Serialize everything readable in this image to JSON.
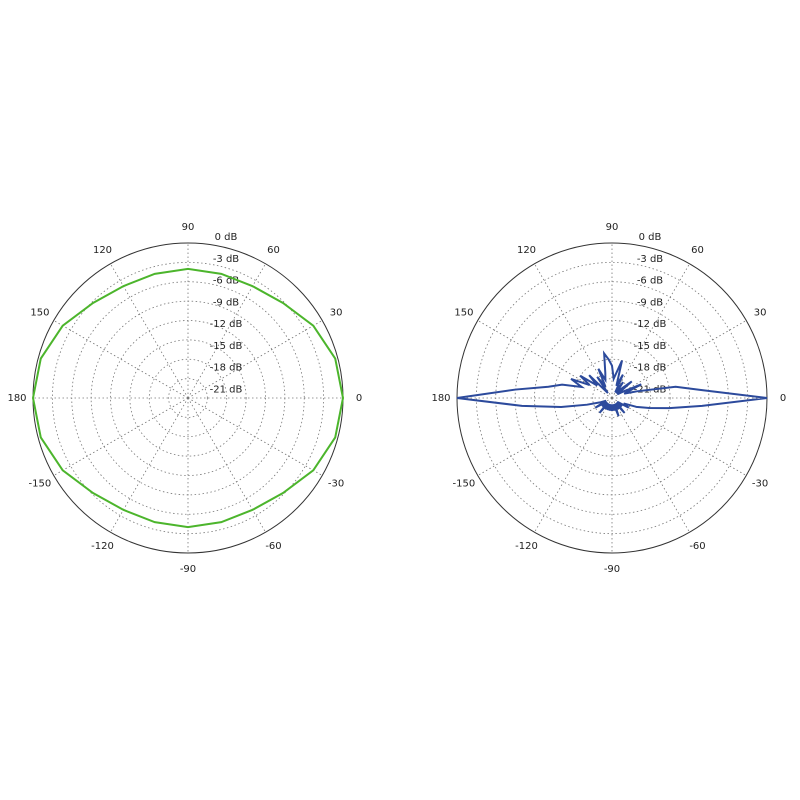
{
  "chart_data": [
    {
      "type": "polar",
      "color": "#4cb52c",
      "rlim": [
        -24,
        0
      ],
      "rticks": [
        {
          "value": 0,
          "label": "0 dB"
        },
        {
          "value": -3,
          "label": "-3 dB"
        },
        {
          "value": -6,
          "label": "-6 dB"
        },
        {
          "value": -9,
          "label": "-9 dB"
        },
        {
          "value": -12,
          "label": "-12 dB"
        },
        {
          "value": -15,
          "label": "-15 dB"
        },
        {
          "value": -18,
          "label": "-18 dB"
        },
        {
          "value": -21,
          "label": "-21 dB"
        }
      ],
      "thetaticks": [
        0,
        30,
        60,
        90,
        120,
        150,
        180,
        -150,
        -120,
        -90,
        -60,
        -30
      ],
      "theta": [
        0,
        15,
        30,
        45,
        60,
        75,
        90,
        105,
        120,
        135,
        150,
        165,
        180,
        195,
        210,
        225,
        240,
        255,
        270,
        285,
        300,
        315,
        330,
        345
      ],
      "values": [
        0,
        -0.4,
        -1.6,
        -3.2,
        -4,
        -4.1,
        -4,
        -4.1,
        -4,
        -3.2,
        -1.6,
        -0.4,
        0,
        -0.4,
        -1.6,
        -3.2,
        -4,
        -4.1,
        -4,
        -4.1,
        -4,
        -3.2,
        -1.6,
        -0.4
      ]
    },
    {
      "type": "polar",
      "color": "#2c4a9c",
      "rlim": [
        -24,
        0
      ],
      "rticks": [
        {
          "value": 0,
          "label": "0 dB"
        },
        {
          "value": -3,
          "label": "-3 dB"
        },
        {
          "value": -6,
          "label": "-6 dB"
        },
        {
          "value": -9,
          "label": "-9 dB"
        },
        {
          "value": -12,
          "label": "-12 dB"
        },
        {
          "value": -15,
          "label": "-15 dB"
        },
        {
          "value": -18,
          "label": "-18 dB"
        },
        {
          "value": -21,
          "label": "-21 dB"
        }
      ],
      "thetaticks": [
        0,
        30,
        60,
        90,
        120,
        150,
        180,
        -150,
        -120,
        -90,
        -60,
        -30
      ],
      "theta": [
        0,
        5,
        10,
        15,
        20,
        25,
        30,
        35,
        40,
        45,
        50,
        55,
        60,
        65,
        70,
        75,
        80,
        85,
        90,
        95,
        100,
        105,
        110,
        115,
        120,
        125,
        130,
        135,
        140,
        145,
        150,
        155,
        160,
        165,
        170,
        175,
        180,
        185,
        190,
        195,
        200,
        205,
        210,
        215,
        220,
        225,
        230,
        235,
        240,
        245,
        250,
        255,
        260,
        265,
        270,
        275,
        280,
        285,
        290,
        295,
        300,
        305,
        310,
        315,
        320,
        325,
        330,
        335,
        340,
        345,
        350,
        355
      ],
      "values": [
        0,
        -10,
        -14,
        -20,
        -22,
        -19,
        -22,
        -23,
        -20,
        -22,
        -23,
        -21,
        -23,
        -20,
        -22,
        -18,
        -20,
        -21,
        -19,
        -18,
        -17,
        -20,
        -21,
        -19,
        -22,
        -20,
        -23,
        -19,
        -21,
        -18,
        -20,
        -17,
        -19,
        -16,
        -14,
        -9,
        0,
        -10,
        -16,
        -20,
        -22,
        -23,
        -21,
        -23,
        -22,
        -23,
        -21,
        -23,
        -22,
        -23,
        -22,
        -23,
        -22,
        -23,
        -22,
        -23,
        -22,
        -23,
        -21,
        -23,
        -22,
        -23,
        -21,
        -23,
        -22,
        -23,
        -21,
        -22,
        -20,
        -18,
        -15,
        -10
      ]
    }
  ]
}
